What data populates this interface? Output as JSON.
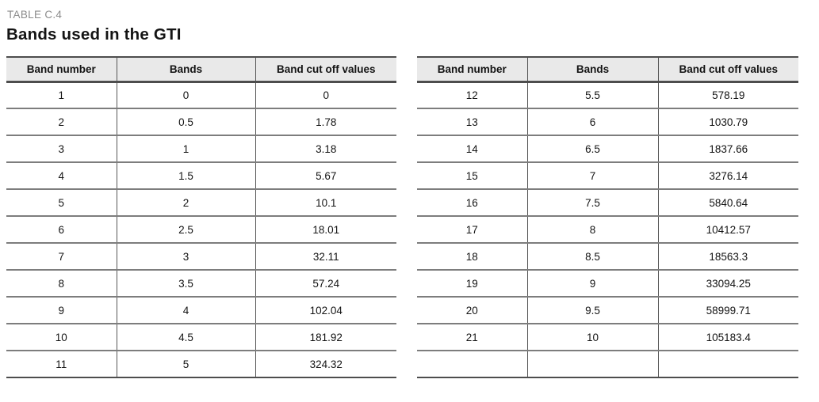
{
  "page": {
    "table_label": "TABLE C.4",
    "title": "Bands used in the GTI"
  },
  "colors": {
    "header_bg": "#e9e9e9",
    "border_dark": "#4d4d4d",
    "border_row": "#7d7d7d",
    "border_vert": "#565656",
    "label_gray": "#8c8c8c",
    "text": "#141414",
    "page_bg": "#ffffff"
  },
  "tables": [
    {
      "name": "bands-1-to-11",
      "headers": [
        "Band number",
        "Bands",
        "Band cut off values"
      ],
      "rows": [
        [
          "1",
          "0",
          "0"
        ],
        [
          "2",
          "0.5",
          "1.78"
        ],
        [
          "3",
          "1",
          "3.18"
        ],
        [
          "4",
          "1.5",
          "5.67"
        ],
        [
          "5",
          "2",
          "10.1"
        ],
        [
          "6",
          "2.5",
          "18.01"
        ],
        [
          "7",
          "3",
          "32.11"
        ],
        [
          "8",
          "3.5",
          "57.24"
        ],
        [
          "9",
          "4",
          "102.04"
        ],
        [
          "10",
          "4.5",
          "181.92"
        ],
        [
          "11",
          "5",
          "324.32"
        ]
      ]
    },
    {
      "name": "bands-12-to-21",
      "headers": [
        "Band number",
        "Bands",
        "Band cut off values"
      ],
      "rows": [
        [
          "12",
          "5.5",
          "578.19"
        ],
        [
          "13",
          "6",
          "1030.79"
        ],
        [
          "14",
          "6.5",
          "1837.66"
        ],
        [
          "15",
          "7",
          "3276.14"
        ],
        [
          "16",
          "7.5",
          "5840.64"
        ],
        [
          "17",
          "8",
          "10412.57"
        ],
        [
          "18",
          "8.5",
          "18563.3"
        ],
        [
          "19",
          "9",
          "33094.25"
        ],
        [
          "20",
          "9.5",
          "58999.71"
        ],
        [
          "21",
          "10",
          "105183.4"
        ],
        [
          "",
          "",
          ""
        ]
      ]
    }
  ]
}
